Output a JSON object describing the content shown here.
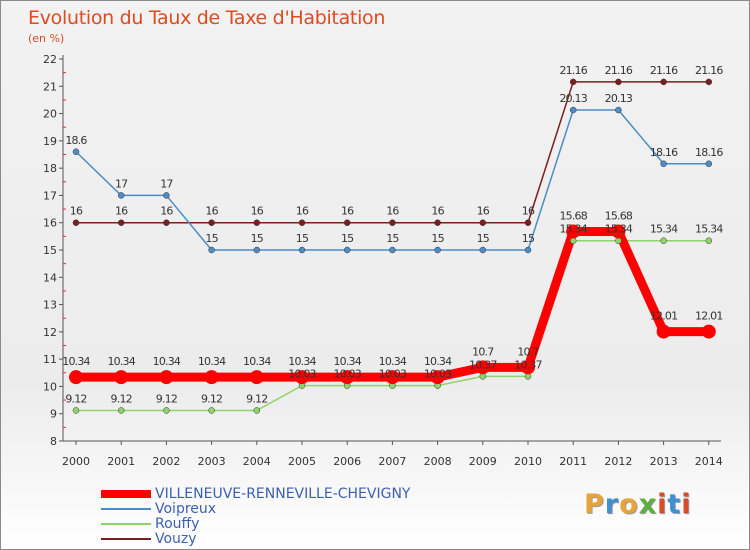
{
  "title": "Evolution du Taux de Taxe d'Habitation",
  "subtitle": "(en %)",
  "logo": {
    "text": "Proxiti",
    "colors": [
      "#e8a33b",
      "#3f8fd1",
      "#e8a33b",
      "#5cae3e",
      "#d84b2a",
      "#3f8fd1",
      "#d84b2a"
    ]
  },
  "chart_data": {
    "type": "line",
    "title": "Evolution du Taux de Taxe d'Habitation",
    "subtitle": "(en %)",
    "ylim": [
      8,
      22
    ],
    "yticks": [
      8,
      9,
      10,
      11,
      12,
      13,
      14,
      15,
      16,
      17,
      18,
      19,
      20,
      21,
      22
    ],
    "x": [
      "2000",
      "2001",
      "2002",
      "2003",
      "2004",
      "2005",
      "2006",
      "2007",
      "2008",
      "2009",
      "2010",
      "2011",
      "2012",
      "2013",
      "2014"
    ],
    "grid": false,
    "legend_position": "bottom-left",
    "series": [
      {
        "name": "Vouzy",
        "color": "#7a1e1e",
        "width": 1.5,
        "values": [
          16,
          16,
          16,
          16,
          16,
          16,
          16,
          16,
          16,
          16,
          16,
          21.16,
          21.16,
          21.16,
          21.16
        ],
        "labels": [
          "16",
          "16",
          "16",
          "16",
          "16",
          "16",
          "16",
          "16",
          "16",
          "16",
          "16",
          "21.16",
          "21.16",
          "21.16",
          "21.16"
        ]
      },
      {
        "name": "Voipreux",
        "color": "#4d8cc7",
        "width": 1.5,
        "values": [
          18.6,
          17,
          17,
          15,
          15,
          15,
          15,
          15,
          15,
          15,
          15,
          20.13,
          20.13,
          18.16,
          18.16
        ],
        "labels": [
          "18.6",
          "17",
          "17",
          "15",
          "15",
          "15",
          "15",
          "15",
          "15",
          "15",
          "15",
          "20.13",
          "20.13",
          "18.16",
          "18.16"
        ]
      },
      {
        "name": "Rouffy",
        "color": "#8fd46a",
        "width": 1.5,
        "values": [
          9.12,
          9.12,
          9.12,
          9.12,
          9.12,
          10.03,
          10.03,
          10.03,
          10.03,
          10.37,
          10.37,
          15.34,
          15.34,
          15.34,
          15.34
        ],
        "labels": [
          "9.12",
          "9.12",
          "9.12",
          "9.12",
          "9.12",
          "10.03",
          "10.03",
          "10.03",
          "10.03",
          "10.37",
          "10.37",
          "15.34",
          "15.34",
          "15.34",
          "15.34"
        ]
      },
      {
        "name": "VILLENEUVE-RENNEVILLE-CHEVIGNY",
        "color": "#ff0000",
        "width": 9,
        "values": [
          10.34,
          10.34,
          10.34,
          10.34,
          10.34,
          10.34,
          10.34,
          10.34,
          10.34,
          10.7,
          10.7,
          15.68,
          15.68,
          12.01,
          12.01
        ],
        "labels": [
          "10.34",
          "10.34",
          "10.34",
          "10.34",
          "10.34",
          "10.34",
          "10.34",
          "10.34",
          "10.34",
          "10.7",
          "10.7",
          "15.68",
          "15.68",
          "12.01",
          "12.01"
        ]
      }
    ],
    "legend_order": [
      "VILLENEUVE-RENNEVILLE-CHEVIGNY",
      "Voipreux",
      "Rouffy",
      "Vouzy"
    ]
  }
}
